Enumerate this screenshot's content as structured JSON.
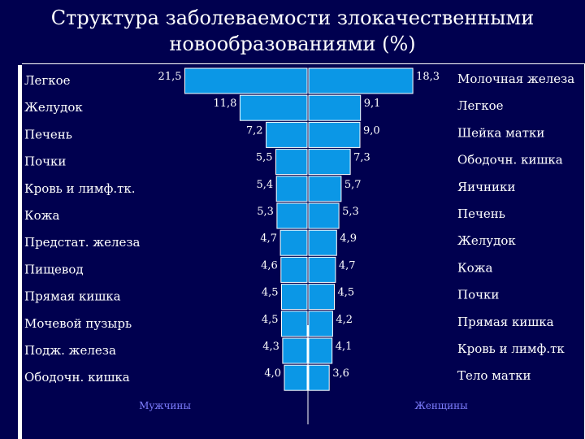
{
  "title_line1": "Структура заболеваемости злокачественными",
  "title_line2": "новообразованиями (%)",
  "colors": {
    "background": "#00004f",
    "bar": "#0b97e6",
    "bar_stroke": "#ffffff",
    "title": "#ffffff",
    "label": "#ffffff",
    "value": "#ffffff",
    "legend": "#7f7fff"
  },
  "chart_data": {
    "type": "bar",
    "orientation": "horizontal-mirrored",
    "xlabel": "",
    "ylabel": "",
    "grid": false,
    "series": [
      {
        "name": "Мужчины",
        "categories": [
          "Легкое",
          "Желудок",
          "Печень",
          "Почки",
          "Кровь  и лимф.тк.",
          "Кожа",
          "Предстат. железа",
          "Пищевод",
          "Прямая кишка",
          "Мочевой пузырь",
          "Подж. железа",
          "Ободочн. кишка"
        ],
        "value_labels": [
          "21,5",
          "11,8",
          "7,2",
          "5,5",
          "5,4",
          "5,3",
          "4,7",
          "4,6",
          "4,5",
          "4,5",
          "4,3",
          "4,0"
        ],
        "values": [
          21.5,
          11.8,
          7.2,
          5.5,
          5.4,
          5.3,
          4.7,
          4.6,
          4.5,
          4.5,
          4.3,
          4.0
        ]
      },
      {
        "name": "Женщины",
        "categories": [
          "Молочная железа",
          "Легкое",
          "Шейка матки",
          "Ободочн. кишка",
          "Яичники",
          "Печень",
          "Желудок",
          "Кожа",
          "Почки",
          "Прямая кишка",
          "Кровь и лимф.тк",
          "Тело матки"
        ],
        "value_labels": [
          "18,3",
          "9,1",
          "9,0",
          "7,3",
          "5,7",
          "5,3",
          "4,9",
          "4,7",
          "4,5",
          "4,2",
          "4,1",
          "3,6"
        ],
        "values": [
          18.3,
          9.1,
          9.0,
          7.3,
          5.7,
          5.3,
          4.9,
          4.7,
          4.5,
          4.2,
          4.1,
          3.6
        ]
      }
    ]
  }
}
